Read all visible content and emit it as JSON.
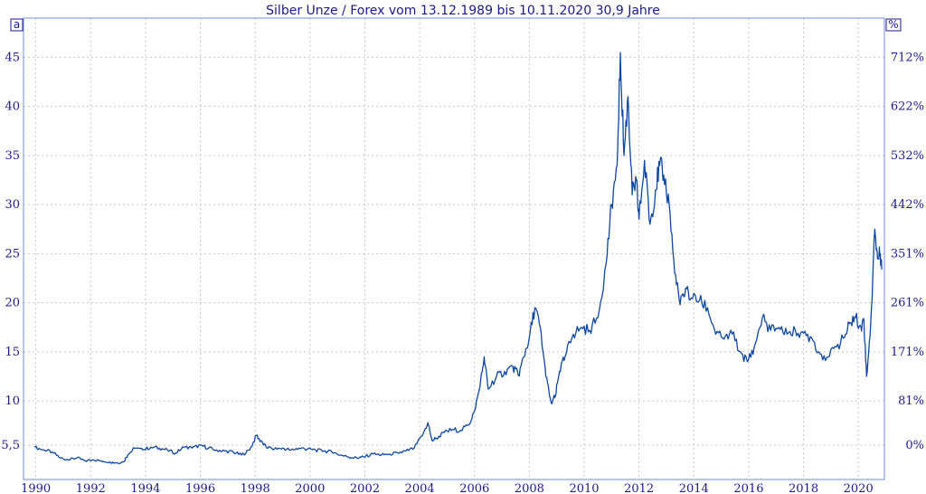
{
  "chart_data": {
    "type": "line",
    "title": "Silber Unze / Forex vom 13.12.1989 bis 10.11.2020 30,9 Jahre",
    "left_axis_label": "a",
    "right_axis_label": "%",
    "xlim": [
      1989.55,
      2020.95
    ],
    "ylim": [
      2.0,
      49.0
    ],
    "x_ticks": [
      {
        "value": 1990,
        "label": "1990"
      },
      {
        "value": 1992,
        "label": "1992"
      },
      {
        "value": 1994,
        "label": "1994"
      },
      {
        "value": 1996,
        "label": "1996"
      },
      {
        "value": 1998,
        "label": "1998"
      },
      {
        "value": 2000,
        "label": "2000"
      },
      {
        "value": 2002,
        "label": "2002"
      },
      {
        "value": 2004,
        "label": "2004"
      },
      {
        "value": 2006,
        "label": "2006"
      },
      {
        "value": 2008,
        "label": "2008"
      },
      {
        "value": 2010,
        "label": "2010"
      },
      {
        "value": 2012,
        "label": "2012"
      },
      {
        "value": 2014,
        "label": "2014"
      },
      {
        "value": 2016,
        "label": "2016"
      },
      {
        "value": 2018,
        "label": "2018"
      },
      {
        "value": 2020,
        "label": "2020"
      }
    ],
    "y_ticks_left": [
      {
        "value": 5.5,
        "label": "5,5"
      },
      {
        "value": 10,
        "label": "10"
      },
      {
        "value": 15,
        "label": "15"
      },
      {
        "value": 20,
        "label": "20"
      },
      {
        "value": 25,
        "label": "25"
      },
      {
        "value": 30,
        "label": "30"
      },
      {
        "value": 35,
        "label": "35"
      },
      {
        "value": 40,
        "label": "40"
      },
      {
        "value": 45,
        "label": "45"
      }
    ],
    "y_ticks_right": [
      {
        "value": 5.5,
        "label": "0%"
      },
      {
        "value": 10,
        "label": "81%"
      },
      {
        "value": 15,
        "label": "171%"
      },
      {
        "value": 20,
        "label": "261%"
      },
      {
        "value": 25,
        "label": "351%"
      },
      {
        "value": 30,
        "label": "442%"
      },
      {
        "value": 35,
        "label": "532%"
      },
      {
        "value": 40,
        "label": "622%"
      },
      {
        "value": 45,
        "label": "712%"
      }
    ],
    "grid": true,
    "line_color": "#0d47a1",
    "series": [
      {
        "x": [
          1989.95,
          1990.3,
          1990.6,
          1990.9,
          1991.2,
          1991.5,
          1991.8,
          1992.1,
          1992.4,
          1992.7,
          1992.9,
          1993.2,
          1993.35,
          1993.6,
          1993.9,
          1994.2,
          1994.5,
          1994.8,
          1995.1,
          1995.4,
          1995.7,
          1996.0,
          1996.3,
          1996.6,
          1996.9,
          1997.2,
          1997.5,
          1997.8,
          1998.05,
          1998.2,
          1998.4,
          1998.7,
          1999.0,
          1999.3,
          1999.6,
          1999.9,
          2000.2,
          2000.5,
          2000.8,
          2001.1,
          2001.4,
          2001.7,
          2001.95,
          2002.3,
          2002.6,
          2002.9,
          2003.2,
          2003.5,
          2003.8,
          2004.1,
          2004.3,
          2004.45,
          2004.6,
          2004.9,
          2005.2,
          2005.5,
          2005.8,
          2006.0,
          2006.2,
          2006.35,
          2006.5,
          2006.8,
          2007.1,
          2007.4,
          2007.6,
          2007.8,
          2008.0,
          2008.2,
          2008.4,
          2008.6,
          2008.8,
          2008.95,
          2009.1,
          2009.3,
          2009.6,
          2009.9,
          2010.2,
          2010.5,
          2010.8,
          2011.0,
          2011.2,
          2011.32,
          2011.45,
          2011.6,
          2011.75,
          2011.9,
          2012.0,
          2012.2,
          2012.4,
          2012.6,
          2012.75,
          2012.9,
          2013.1,
          2013.3,
          2013.5,
          2013.7,
          2013.9,
          2014.2,
          2014.5,
          2014.8,
          2015.1,
          2015.4,
          2015.7,
          2015.95,
          2016.2,
          2016.5,
          2016.8,
          2017.1,
          2017.4,
          2017.7,
          2018.0,
          2018.3,
          2018.6,
          2018.9,
          2019.2,
          2019.5,
          2019.7,
          2019.9,
          2020.1,
          2020.2,
          2020.3,
          2020.45,
          2020.6,
          2020.7,
          2020.8,
          2020.86
        ],
        "y": [
          5.3,
          5.0,
          4.8,
          4.2,
          4.0,
          4.2,
          3.9,
          4.0,
          3.9,
          3.8,
          3.7,
          3.8,
          4.5,
          5.2,
          5.0,
          5.3,
          5.2,
          5.0,
          4.7,
          5.3,
          5.2,
          5.5,
          5.2,
          5.0,
          4.9,
          4.8,
          4.5,
          5.0,
          6.5,
          5.9,
          5.3,
          5.1,
          5.2,
          5.0,
          5.2,
          5.1,
          5.0,
          4.9,
          4.8,
          4.5,
          4.3,
          4.2,
          4.3,
          4.6,
          4.5,
          4.6,
          4.7,
          4.9,
          5.2,
          6.5,
          7.8,
          6.0,
          6.2,
          6.8,
          7.1,
          7.0,
          7.6,
          9.0,
          11.5,
          14.5,
          11.2,
          12.5,
          13.0,
          13.5,
          12.6,
          14.5,
          16.5,
          19.5,
          17.5,
          12.5,
          9.8,
          10.5,
          13.0,
          14.5,
          16.8,
          17.5,
          17.2,
          18.5,
          24.0,
          30.0,
          34.0,
          45.5,
          35.0,
          41.0,
          31.0,
          32.5,
          28.5,
          34.5,
          28.0,
          31.5,
          34.0,
          33.0,
          30.0,
          23.0,
          19.8,
          21.5,
          20.5,
          20.2,
          19.5,
          16.8,
          16.3,
          16.8,
          15.0,
          14.0,
          15.5,
          18.5,
          17.2,
          17.5,
          16.8,
          17.2,
          16.9,
          16.4,
          14.8,
          14.5,
          15.5,
          16.5,
          18.0,
          18.5,
          17.5,
          18.3,
          12.5,
          17.8,
          27.5,
          24.5,
          25.0,
          23.5
        ]
      }
    ]
  }
}
